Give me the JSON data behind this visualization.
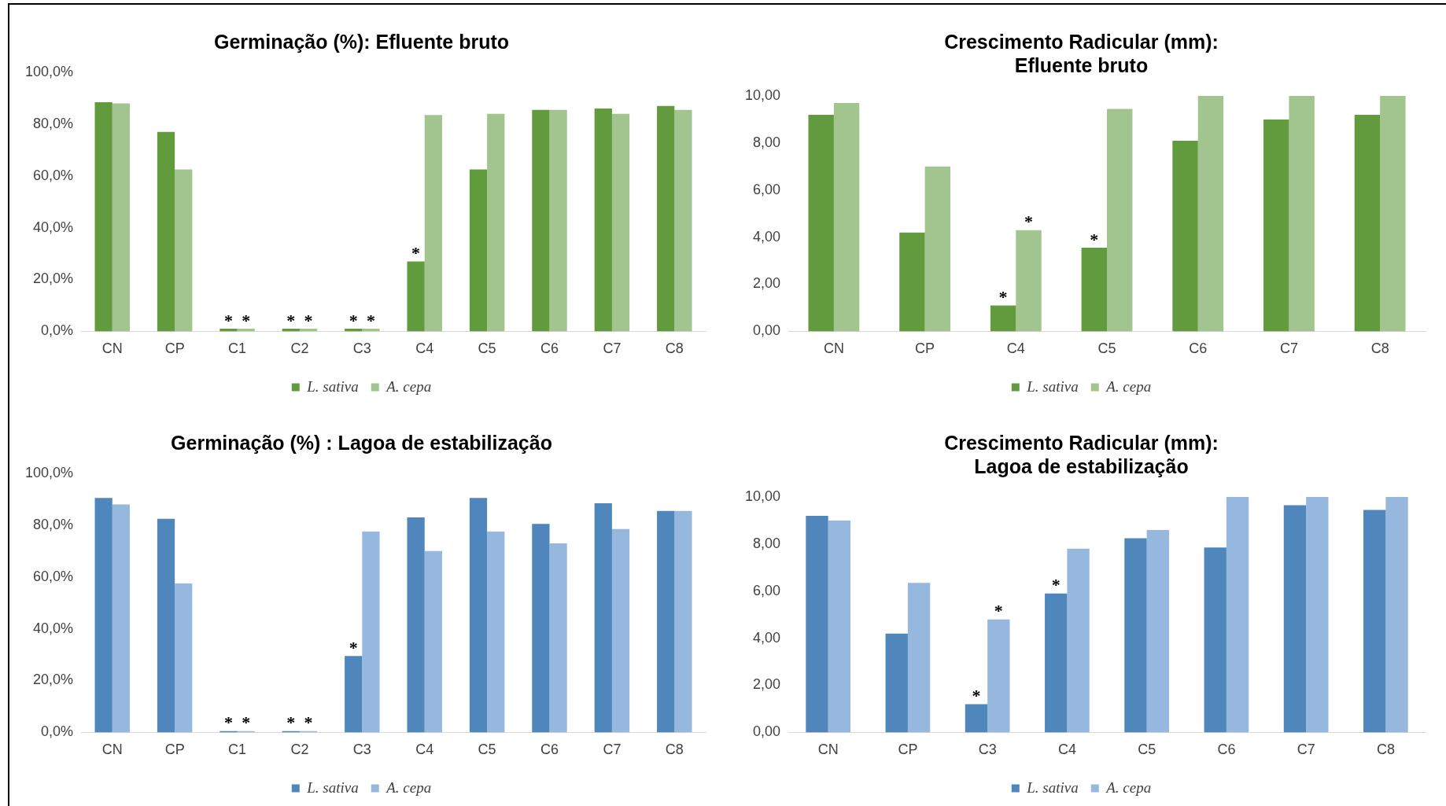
{
  "chart_data": [
    {
      "type": "bar",
      "title": "Germinação (%): Efluente bruto",
      "categories": [
        "CN",
        "CP",
        "C1",
        "C2",
        "C3",
        "C4",
        "C5",
        "C6",
        "C7",
        "C8"
      ],
      "series": [
        {
          "name": "L. sativa",
          "color": "#629a3e",
          "values": [
            88.5,
            77,
            1,
            1,
            1,
            27,
            62.5,
            85.5,
            86,
            87
          ]
        },
        {
          "name": "A. cepa",
          "color": "#a2c48e",
          "values": [
            88,
            62.5,
            1,
            1,
            1,
            83.5,
            84,
            85.5,
            84,
            85.5
          ]
        }
      ],
      "ylim": [
        0,
        100
      ],
      "yticks": [
        {
          "value": 0,
          "label": "0,0%"
        },
        {
          "value": 20,
          "label": "20,0%"
        },
        {
          "value": 40,
          "label": "40,0%"
        },
        {
          "value": 60,
          "label": "60,0%"
        },
        {
          "value": 80,
          "label": "80,0%"
        },
        {
          "value": 100,
          "label": "100,0%"
        }
      ],
      "legend": "bottom",
      "grid": false,
      "annotations": [
        {
          "text": "*",
          "x": "C1",
          "y": 1
        },
        {
          "text": "*",
          "x": "C1",
          "y": 1
        },
        {
          "text": "*",
          "x": "C2",
          "y": 1
        },
        {
          "text": "*",
          "x": "C2",
          "y": 1
        },
        {
          "text": "*",
          "x": "C3",
          "y": 1
        },
        {
          "text": "*",
          "x": "C3",
          "y": 1
        },
        {
          "text": "*",
          "x": "C4",
          "y": 27
        }
      ]
    },
    {
      "type": "bar",
      "title": "Crescimento Radicular (mm):\nEfluente bruto",
      "categories": [
        "CN",
        "CP",
        "C4",
        "C5",
        "C6",
        "C7",
        "C8"
      ],
      "series": [
        {
          "name": "L. sativa",
          "color": "#629a3e",
          "values": [
            9.2,
            4.2,
            1.1,
            3.55,
            8.1,
            9,
            9.2
          ]
        },
        {
          "name": "A. cepa",
          "color": "#a2c48e",
          "values": [
            9.7,
            7,
            4.3,
            9.45,
            10,
            10,
            10
          ]
        }
      ],
      "ylim": [
        0,
        10
      ],
      "yticks": [
        {
          "value": 0,
          "label": "0,00"
        },
        {
          "value": 2,
          "label": "2,00"
        },
        {
          "value": 4,
          "label": "4,00"
        },
        {
          "value": 6,
          "label": "6,00"
        },
        {
          "value": 8,
          "label": "8,00"
        },
        {
          "value": 10,
          "label": "10,00"
        }
      ],
      "legend": "bottom",
      "grid": false,
      "annotations": [
        {
          "text": "*",
          "x": "C4",
          "y": 1.1
        },
        {
          "text": "*",
          "x": "C4",
          "y": 4.3
        },
        {
          "text": "*",
          "x": "C5",
          "y": 3.55
        }
      ]
    },
    {
      "type": "bar",
      "title": "Germinação (%) : Lagoa de estabilização",
      "categories": [
        "CN",
        "CP",
        "C1",
        "C2",
        "C3",
        "C4",
        "C5",
        "C6",
        "C7",
        "C8"
      ],
      "series": [
        {
          "name": "L. sativa",
          "color": "#4f86bb",
          "values": [
            90.5,
            82.5,
            0.5,
            0.5,
            29.5,
            83,
            90.5,
            80.5,
            88.5,
            85.5
          ]
        },
        {
          "name": "A. cepa",
          "color": "#97b8de",
          "values": [
            88,
            57.5,
            0.5,
            0.5,
            77.5,
            70,
            77.5,
            73,
            78.5,
            85.5
          ]
        }
      ],
      "ylim": [
        0,
        100
      ],
      "yticks": [
        {
          "value": 0,
          "label": "0,0%"
        },
        {
          "value": 20,
          "label": "20,0%"
        },
        {
          "value": 40,
          "label": "40,0%"
        },
        {
          "value": 60,
          "label": "60,0%"
        },
        {
          "value": 80,
          "label": "80,0%"
        },
        {
          "value": 100,
          "label": "100,0%"
        }
      ],
      "legend": "bottom",
      "grid": false,
      "annotations": [
        {
          "text": "*",
          "x": "C1",
          "y": 0.5
        },
        {
          "text": "*",
          "x": "C1",
          "y": 0.5
        },
        {
          "text": "*",
          "x": "C2",
          "y": 0.5
        },
        {
          "text": "*",
          "x": "C2",
          "y": 0.5
        },
        {
          "text": "*",
          "x": "C3",
          "y": 29.5
        }
      ]
    },
    {
      "type": "bar",
      "title": "Crescimento Radicular (mm):\nLagoa de estabilização",
      "categories": [
        "CN",
        "CP",
        "C3",
        "C4",
        "C5",
        "C6",
        "C7",
        "C8"
      ],
      "series": [
        {
          "name": "L. sativa",
          "color": "#4f86bb",
          "values": [
            9.2,
            4.2,
            1.2,
            5.9,
            8.25,
            7.85,
            9.65,
            9.45
          ]
        },
        {
          "name": "A. cepa",
          "color": "#97b8de",
          "values": [
            9,
            6.35,
            4.8,
            7.8,
            8.6,
            10,
            10,
            10
          ]
        }
      ],
      "ylim": [
        0,
        10
      ],
      "yticks": [
        {
          "value": 0,
          "label": "0,00"
        },
        {
          "value": 2,
          "label": "2,00"
        },
        {
          "value": 4,
          "label": "4,00"
        },
        {
          "value": 6,
          "label": "6,00"
        },
        {
          "value": 8,
          "label": "8,00"
        },
        {
          "value": 10,
          "label": "10,00"
        }
      ],
      "legend": "bottom",
      "grid": false,
      "annotations": [
        {
          "text": "*",
          "x": "C3",
          "y": 1.2
        },
        {
          "text": "*",
          "x": "C3",
          "y": 4.8
        },
        {
          "text": "*",
          "x": "C4",
          "y": 5.9
        }
      ]
    }
  ]
}
